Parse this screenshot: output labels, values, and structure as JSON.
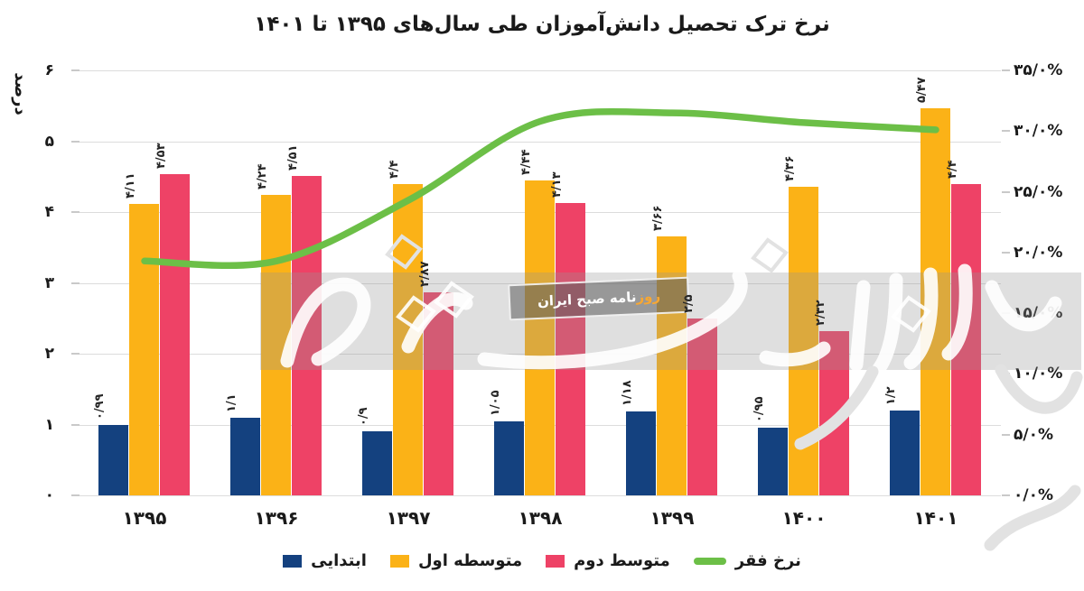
{
  "chart_data": {
    "type": "bar+line",
    "title": "نرخ ترک تحصیل دانش‌آموزان طی سال‌های ۱۳۹۵ تا ۱۴۰۱",
    "ylabel_left": "درصد",
    "categories": [
      "۱۳۹۵",
      "۱۳۹۶",
      "۱۳۹۷",
      "۱۳۹۸",
      "۱۳۹۹",
      "۱۴۰۰",
      "۱۴۰۱"
    ],
    "left_axis": {
      "min": 0,
      "max": 6,
      "ticks": [
        {
          "v": 0,
          "label": "۰"
        },
        {
          "v": 1,
          "label": "۱"
        },
        {
          "v": 2,
          "label": "۲"
        },
        {
          "v": 3,
          "label": "۳"
        },
        {
          "v": 4,
          "label": "۴"
        },
        {
          "v": 5,
          "label": "۵"
        },
        {
          "v": 6,
          "label": "۶"
        }
      ]
    },
    "right_axis": {
      "min": 0,
      "max": 35,
      "ticks": [
        {
          "v": 0,
          "label": "۰/۰%"
        },
        {
          "v": 5,
          "label": "۵/۰%"
        },
        {
          "v": 10,
          "label": "۱۰/۰%"
        },
        {
          "v": 15,
          "label": "۱۵/۰%"
        },
        {
          "v": 20,
          "label": "۲۰/۰%"
        },
        {
          "v": 25,
          "label": "۲۵/۰%"
        },
        {
          "v": 30,
          "label": "۳۰/۰%"
        },
        {
          "v": 35,
          "label": "۳۵/۰%"
        }
      ]
    },
    "series": [
      {
        "name": "ابتدایی",
        "color": "#14417f",
        "values": [
          0.99,
          1.1,
          0.9,
          1.05,
          1.18,
          0.95,
          1.2
        ],
        "labels": [
          "۰/۹۹",
          "۱/۱",
          "۰/۹",
          "۱/۰۵",
          "۱/۱۸",
          "۰/۹۵",
          "۱/۲"
        ]
      },
      {
        "name": "متوسطه اول",
        "color": "#fbb217",
        "values": [
          4.11,
          4.24,
          4.4,
          4.44,
          3.66,
          4.36,
          5.47
        ],
        "labels": [
          "۴/۱۱",
          "۴/۲۴",
          "۴/۴",
          "۴/۴۴",
          "۳/۶۶",
          "۴/۳۶",
          "۵/۴۷"
        ]
      },
      {
        "name": "متوسط دوم",
        "color": "#ee4266",
        "values": [
          4.53,
          4.51,
          2.87,
          4.13,
          2.5,
          2.32,
          4.4
        ],
        "labels": [
          "۴/۵۳",
          "۴/۵۱",
          "۲/۸۷",
          "۴/۱۳",
          "۲/۵",
          "۲/۳۲",
          "۴/۴"
        ]
      }
    ],
    "line_series": {
      "name": "نرخ فقر",
      "color": "#6cbf47",
      "axis": "right",
      "values": [
        19.3,
        19.3,
        24.3,
        30.8,
        31.5,
        30.7,
        30.1
      ]
    },
    "legend": [
      {
        "label": "ابتدایی",
        "marker": "square",
        "color": "#14417f"
      },
      {
        "label": "متوسطه اول",
        "marker": "square",
        "color": "#fbb217"
      },
      {
        "label": "متوسط دوم",
        "marker": "square",
        "color": "#ee4266"
      },
      {
        "label": "نرخ فقر",
        "marker": "line",
        "color": "#6cbf47"
      }
    ]
  },
  "watermark": {
    "badge_highlight": "روز",
    "badge_rest": "نامه صبح ایران"
  }
}
